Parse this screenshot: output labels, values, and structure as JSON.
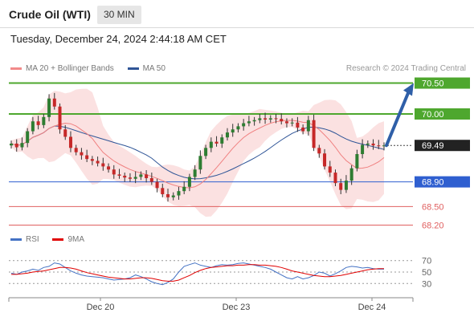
{
  "header": {
    "title": "Crude Oil (WTI)",
    "interval": "30 MIN",
    "timestamp": "Tuesday, December 24, 2024 2:44:18 AM CET",
    "credit": "Research © 2024 Trading Central"
  },
  "legend_main": [
    {
      "label": "MA 20 + Bollinger Bands",
      "color": "#f28a8a"
    },
    {
      "label": "MA 50",
      "color": "#2f5597"
    }
  ],
  "legend_rsi": [
    {
      "label": "RSI",
      "color": "#4472c4"
    },
    {
      "label": "9MA",
      "color": "#e00000"
    }
  ],
  "chart_data": {
    "type": "candlestick",
    "ylim": [
      68.05,
      70.65
    ],
    "levels": [
      {
        "value": 70.5,
        "label": "70.50",
        "style": "resistance",
        "color": "#4ea72e"
      },
      {
        "value": 70.0,
        "label": "70.00",
        "style": "resistance",
        "color": "#4ea72e"
      },
      {
        "value": 69.49,
        "label": "69.49",
        "style": "last",
        "color": "#222222"
      },
      {
        "value": 68.9,
        "label": "68.90",
        "style": "pivot",
        "color": "#2f5fd0"
      },
      {
        "value": 68.5,
        "label": "68.50",
        "style": "support",
        "color": "#e06060"
      },
      {
        "value": 68.2,
        "label": "68.20",
        "style": "support",
        "color": "#e06060"
      }
    ],
    "x_ticks": [
      "Dec 20",
      "Dec 23",
      "Dec 24"
    ],
    "close_path": [
      69.52,
      69.46,
      69.53,
      69.72,
      69.88,
      69.82,
      69.95,
      70.25,
      70.12,
      69.75,
      69.63,
      69.45,
      69.38,
      69.33,
      69.27,
      69.24,
      69.2,
      69.15,
      69.1,
      69.02,
      69.0,
      68.97,
      68.95,
      68.98,
      69.02,
      68.96,
      68.9,
      68.8,
      68.7,
      68.65,
      68.68,
      68.75,
      68.82,
      68.98,
      69.1,
      69.32,
      69.45,
      69.55,
      69.52,
      69.62,
      69.7,
      69.75,
      69.8,
      69.85,
      69.88,
      69.9,
      69.93,
      69.91,
      69.93,
      69.92,
      69.88,
      69.85,
      69.86,
      69.78,
      69.72,
      69.9,
      69.45,
      69.36,
      69.15,
      69.05,
      68.88,
      68.77,
      68.92,
      69.12,
      69.35,
      69.5,
      69.52,
      69.49,
      69.48,
      69.49
    ],
    "direction_arrow": {
      "from": 69.49,
      "to": 70.5
    },
    "rsi": {
      "levels": [
        70,
        50,
        30
      ],
      "ylim": [
        15,
        85
      ],
      "rsi_values": [
        48,
        46,
        50,
        52,
        55,
        53,
        58,
        60,
        66,
        64,
        58,
        52,
        48,
        45,
        43,
        42,
        41,
        40,
        38,
        36,
        37,
        38,
        40,
        45,
        42,
        38,
        33,
        30,
        28,
        32,
        38,
        50,
        60,
        63,
        66,
        62,
        60,
        58,
        61,
        63,
        62,
        63,
        65,
        66,
        64,
        62,
        60,
        58,
        55,
        50,
        45,
        40,
        38,
        42,
        38,
        40,
        44,
        50,
        48,
        43,
        47,
        52,
        58,
        60,
        59,
        57,
        58,
        56,
        55,
        55
      ],
      "ma_values": [
        46,
        46,
        47,
        48,
        50,
        51,
        52,
        54,
        56,
        58,
        58,
        57,
        55,
        52,
        49,
        47,
        45,
        43,
        41,
        40,
        39,
        38,
        38,
        39,
        40,
        40,
        39,
        37,
        35,
        34,
        34,
        36,
        40,
        44,
        49,
        53,
        56,
        58,
        59,
        60,
        61,
        61,
        62,
        62,
        63,
        63,
        62,
        62,
        61,
        60,
        58,
        55,
        52,
        50,
        48,
        46,
        44,
        43,
        42,
        42,
        43,
        44,
        46,
        48,
        50,
        52,
        54,
        55,
        56,
        56
      ]
    }
  }
}
